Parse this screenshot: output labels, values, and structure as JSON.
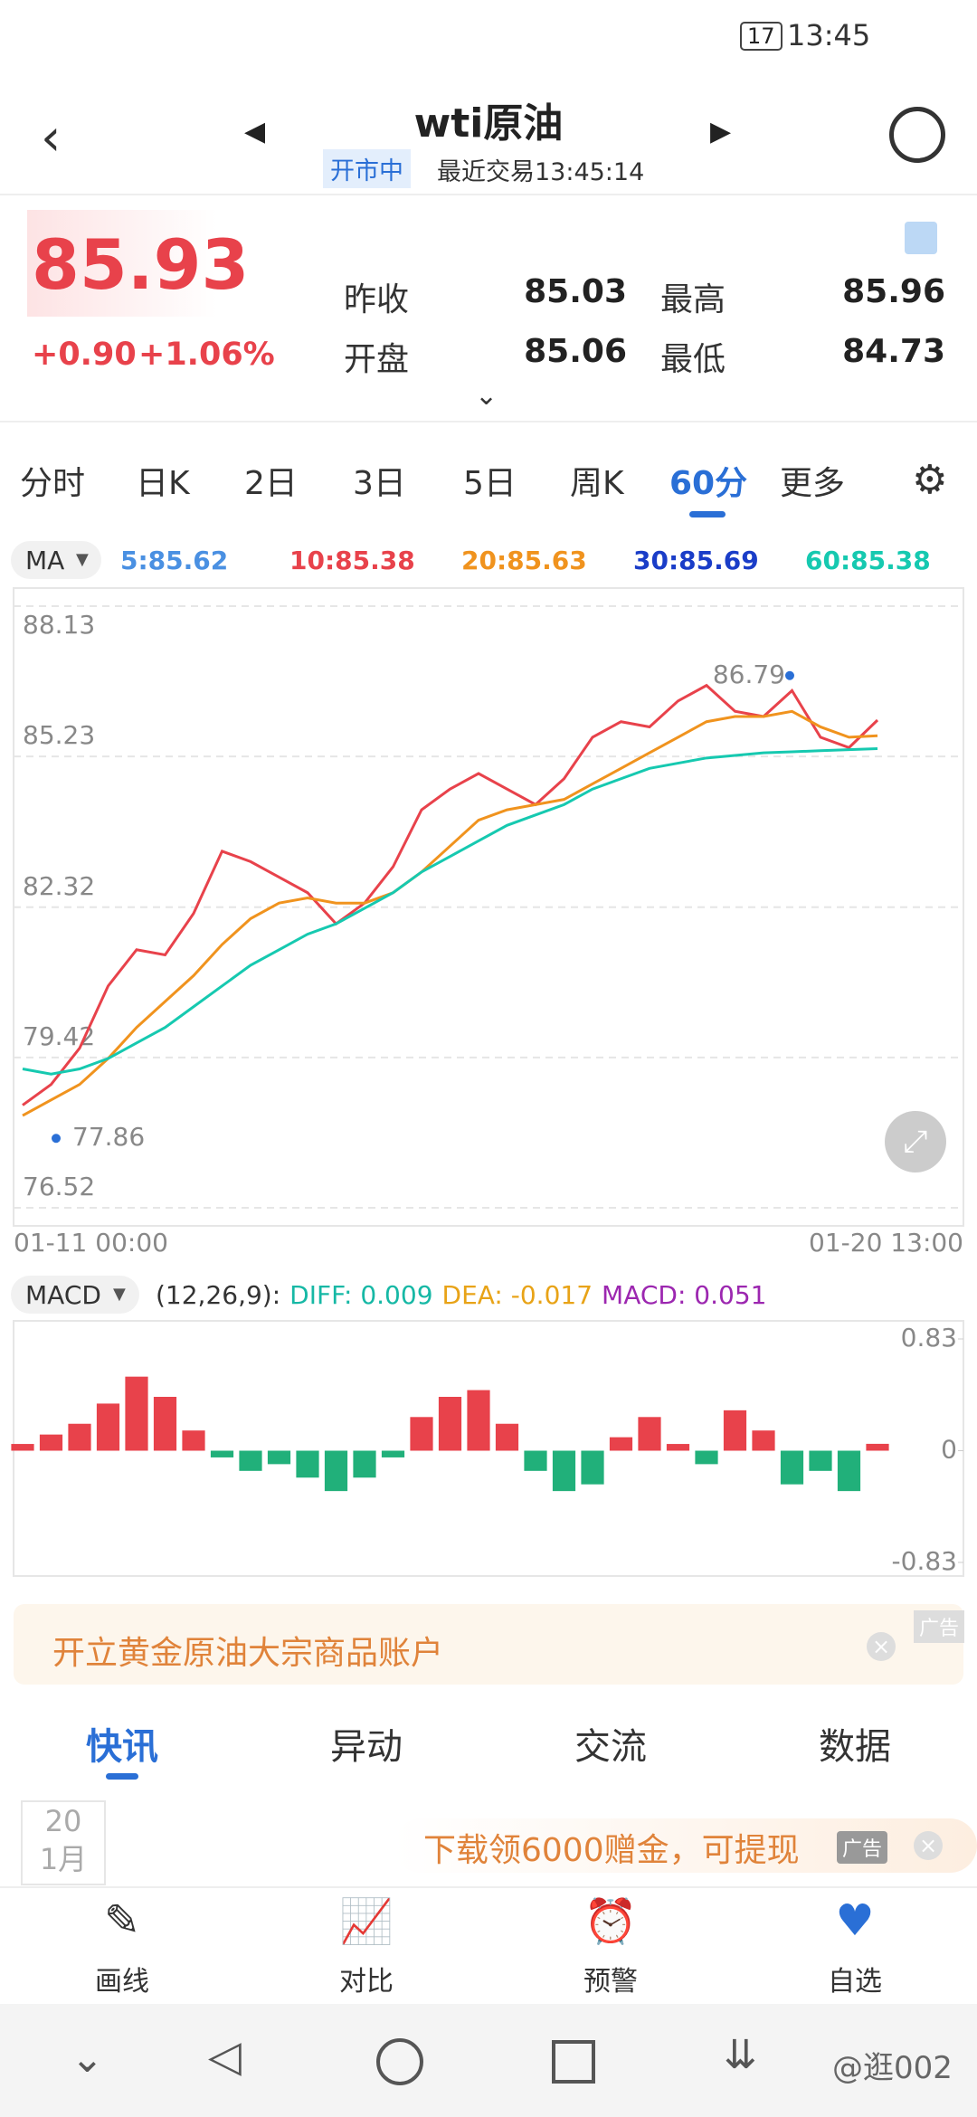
{
  "status_bar": {
    "time": "13:45",
    "battery": "17"
  },
  "header": {
    "title": "wti原油",
    "market_status": "开市中",
    "last_trade": "最近交易13:45:14"
  },
  "quote": {
    "price": "85.93",
    "change": "+0.90",
    "change_pct": "+1.06%",
    "stats": [
      [
        "昨收",
        "85.03"
      ],
      [
        "最高",
        "85.96"
      ],
      [
        "开盘",
        "85.06"
      ],
      [
        "最低",
        "84.73"
      ]
    ]
  },
  "period_tabs": {
    "items": [
      "分时",
      "日K",
      "2日",
      "3日",
      "5日",
      "周K",
      "60分",
      "更多"
    ],
    "active": 6
  },
  "ma_legend": {
    "label": "MA",
    "items": [
      {
        "text": "5:85.62",
        "color": "#4a90e2"
      },
      {
        "text": "10:85.38",
        "color": "#e8424b"
      },
      {
        "text": "20:85.63",
        "color": "#f0931e"
      },
      {
        "text": "30:85.69",
        "color": "#1a3dc8"
      },
      {
        "text": "60:85.38",
        "color": "#16c9b0"
      }
    ]
  },
  "chart_data": [
    {
      "type": "line",
      "ylim": [
        76.52,
        88.13
      ],
      "yticks": [
        76.52,
        79.42,
        82.32,
        85.23,
        88.13
      ],
      "grid": true,
      "x": [
        "01-11 00:00",
        null,
        null,
        null,
        null,
        null,
        null,
        null,
        null,
        null,
        null,
        null,
        null,
        null,
        null,
        null,
        null,
        null,
        null,
        null,
        null,
        null,
        null,
        null,
        null,
        null,
        null,
        null,
        null,
        null,
        "01-20 13:00"
      ],
      "annotations": [
        86.79,
        77.86
      ],
      "series": [
        {
          "color": "#e8424b",
          "values": [
            78.5,
            78.9,
            79.6,
            80.8,
            81.5,
            81.4,
            82.2,
            83.4,
            83.2,
            82.9,
            82.6,
            82.0,
            82.4,
            83.1,
            84.2,
            84.6,
            84.9,
            84.6,
            84.3,
            84.8,
            85.6,
            85.9,
            85.8,
            86.3,
            86.6,
            86.1,
            86.0,
            86.5,
            85.6,
            85.4,
            85.93
          ]
        },
        {
          "color": "#f0931e",
          "values": [
            78.3,
            78.6,
            78.9,
            79.4,
            80.0,
            80.5,
            81.0,
            81.6,
            82.1,
            82.4,
            82.5,
            82.4,
            82.4,
            82.6,
            83.0,
            83.5,
            84.0,
            84.2,
            84.3,
            84.4,
            84.7,
            85.0,
            85.3,
            85.6,
            85.9,
            86.0,
            86.0,
            86.1,
            85.8,
            85.6,
            85.63
          ]
        },
        {
          "color": "#16c9b0",
          "values": [
            79.2,
            79.1,
            79.2,
            79.4,
            79.7,
            80.0,
            80.4,
            80.8,
            81.2,
            81.5,
            81.8,
            82.0,
            82.3,
            82.6,
            83.0,
            83.3,
            83.6,
            83.9,
            84.1,
            84.3,
            84.6,
            84.8,
            85.0,
            85.1,
            85.2,
            85.25,
            85.3,
            85.32,
            85.34,
            85.36,
            85.38
          ]
        }
      ]
    },
    {
      "type": "bar",
      "label": "MACD",
      "params": "(12,26,9):",
      "indicators": [
        {
          "text": "DIFF: 0.009",
          "color": "#16b8a5"
        },
        {
          "text": "DEA: -0.017",
          "color": "#e8a317"
        },
        {
          "text": "MACD: 0.051",
          "color": "#9c27b0"
        }
      ],
      "ylim": [
        -0.83,
        0.83
      ],
      "yticks": [
        0.83,
        0,
        -0.83
      ],
      "up_color": "#e8424b",
      "down_color": "#21b07a",
      "values": [
        0.05,
        0.12,
        0.2,
        0.35,
        0.55,
        0.4,
        0.15,
        -0.05,
        -0.15,
        -0.1,
        -0.2,
        -0.3,
        -0.2,
        -0.05,
        0.25,
        0.4,
        0.45,
        0.2,
        -0.15,
        -0.3,
        -0.25,
        0.1,
        0.25,
        0.05,
        -0.1,
        0.3,
        0.15,
        -0.25,
        -0.15,
        -0.3,
        0.051
      ]
    }
  ],
  "ad_banner": {
    "text": "开立黄金原油大宗商品账户",
    "tag": "广告"
  },
  "news_tabs": {
    "items": [
      "快讯",
      "异动",
      "交流",
      "数据"
    ],
    "active": 0
  },
  "news_date": {
    "day": "20",
    "month": "1月"
  },
  "ad_strip": {
    "text": "下载领6000赠金，可提现",
    "tag": "广告"
  },
  "toolbar": [
    "画线",
    "对比",
    "预警",
    "自选"
  ],
  "watermark": "@逛002"
}
